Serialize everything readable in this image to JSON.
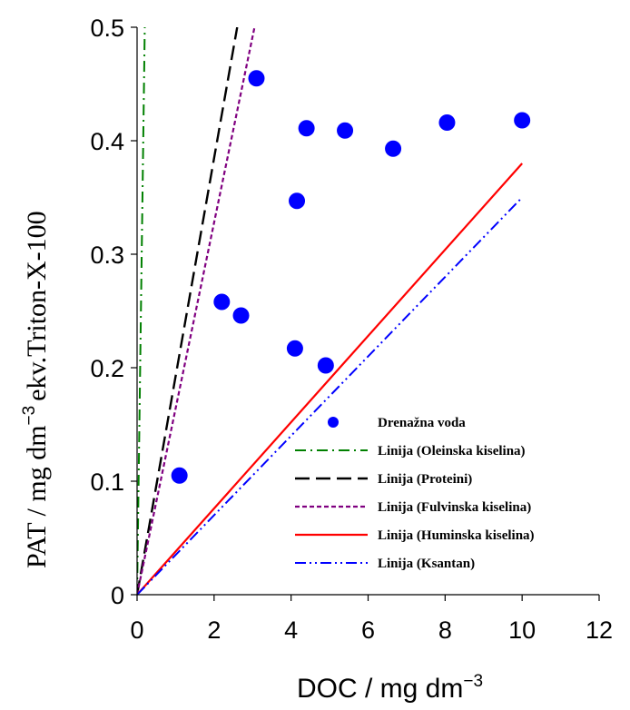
{
  "chart_data": {
    "type": "scatter",
    "xlim": [
      0,
      12
    ],
    "ylim": [
      0,
      0.5
    ],
    "x_ticks": [
      "0",
      "2",
      "4",
      "6",
      "8",
      "10",
      "12"
    ],
    "y_ticks": [
      "0",
      "0.1",
      "0.2",
      "0.3",
      "0.4",
      "0.5"
    ],
    "xlabel_prefix": "DOC  / mg dm",
    "xlabel_sup": "−3",
    "ylabel_prefix": "PAT  / mg dm",
    "ylabel_sup": "−3",
    "ylabel_suffix": "ekv.Triton-X-100",
    "grid": false,
    "legend_position": "bottom-right",
    "series": [
      {
        "name": "Drenažna voda",
        "kind": "scatter",
        "color": "#0000ff",
        "points": [
          {
            "x": 1.1,
            "y": 0.105
          },
          {
            "x": 2.2,
            "y": 0.258
          },
          {
            "x": 2.7,
            "y": 0.246
          },
          {
            "x": 3.1,
            "y": 0.455
          },
          {
            "x": 4.1,
            "y": 0.217
          },
          {
            "x": 4.15,
            "y": 0.347
          },
          {
            "x": 4.4,
            "y": 0.411
          },
          {
            "x": 4.9,
            "y": 0.202
          },
          {
            "x": 5.4,
            "y": 0.409
          },
          {
            "x": 6.65,
            "y": 0.393
          },
          {
            "x": 8.05,
            "y": 0.416
          },
          {
            "x": 10.0,
            "y": 0.418
          }
        ]
      },
      {
        "name": "Linija (Oleinska kiselina)",
        "kind": "line",
        "color": "#008000",
        "dash": "dashdot",
        "points": [
          {
            "x": 0,
            "y": 0
          },
          {
            "x": 0.2,
            "y": 0.5
          }
        ]
      },
      {
        "name": "Linija (Proteini)",
        "kind": "line",
        "color": "#000000",
        "dash": "dash",
        "points": [
          {
            "x": 0,
            "y": 0
          },
          {
            "x": 2.6,
            "y": 0.5
          }
        ]
      },
      {
        "name": "Linija (Fulvinska kiselina)",
        "kind": "line",
        "color": "#800080",
        "dash": "short",
        "points": [
          {
            "x": 0,
            "y": 0
          },
          {
            "x": 3.05,
            "y": 0.5
          }
        ]
      },
      {
        "name": "Linija (Huminska kiselina)",
        "kind": "line",
        "color": "#ff0000",
        "dash": "solid",
        "points": [
          {
            "x": 0,
            "y": 0
          },
          {
            "x": 10.0,
            "y": 0.38
          }
        ]
      },
      {
        "name": "Linija (Ksantan)",
        "kind": "line",
        "color": "#0000ff",
        "dash": "dashdotdot",
        "points": [
          {
            "x": 0,
            "y": 0
          },
          {
            "x": 10.0,
            "y": 0.35
          }
        ]
      }
    ]
  }
}
